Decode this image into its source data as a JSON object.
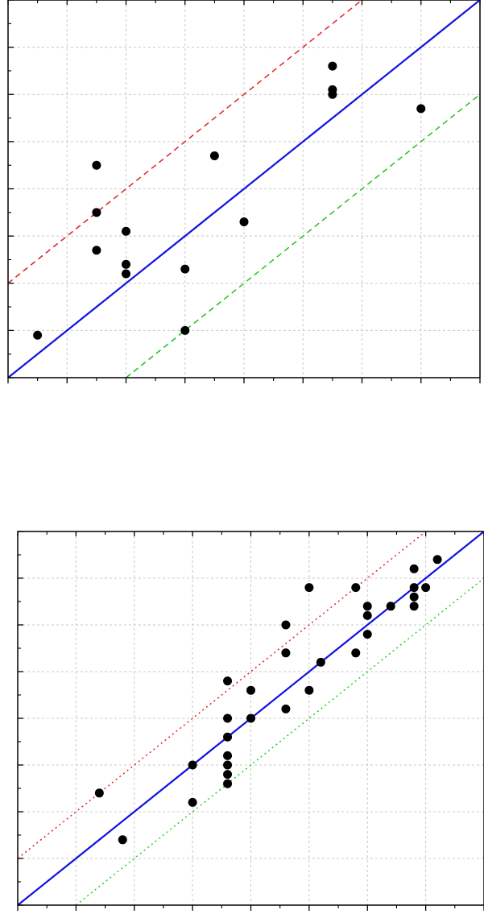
{
  "chart_data": [
    {
      "type": "scatter",
      "title": "",
      "xlabel": "",
      "ylabel": "",
      "xlim": [
        0,
        8
      ],
      "ylim": [
        0,
        8
      ],
      "x_major_ticks": [
        0,
        1,
        2,
        3,
        4,
        5,
        6,
        7,
        8
      ],
      "y_major_ticks": [
        0,
        1,
        2,
        3,
        4,
        5,
        6,
        7,
        8
      ],
      "grid": true,
      "tick_labels_visible": false,
      "series": [
        {
          "kind": "points",
          "color": "#000000",
          "x": [
            0.5,
            1.5,
            1.5,
            1.5,
            2.0,
            2.0,
            2.0,
            3.0,
            3.0,
            3.5,
            4.0,
            5.5,
            5.5,
            5.5,
            7.0
          ],
          "y": [
            0.9,
            4.5,
            3.5,
            2.7,
            3.1,
            2.4,
            2.2,
            2.3,
            1.0,
            4.7,
            3.3,
            6.6,
            6.1,
            6.0,
            5.7
          ]
        },
        {
          "kind": "line",
          "style": "solid",
          "color": "#1010e0",
          "x": [
            0,
            8
          ],
          "y": [
            0,
            8
          ]
        },
        {
          "kind": "line",
          "style": "dashed",
          "color": "#e02020",
          "x": [
            0,
            6
          ],
          "y": [
            2,
            8
          ]
        },
        {
          "kind": "line",
          "style": "dashed",
          "color": "#20c020",
          "x": [
            2,
            8
          ],
          "y": [
            0,
            6
          ]
        }
      ]
    },
    {
      "type": "scatter",
      "title": "",
      "xlabel": "",
      "ylabel": "",
      "xlim": [
        0,
        8
      ],
      "ylim": [
        0,
        8
      ],
      "x_major_ticks": [
        0,
        1,
        2,
        3,
        4,
        5,
        6,
        7,
        8
      ],
      "y_major_ticks": [
        0,
        1,
        2,
        3,
        4,
        5,
        6,
        7,
        8
      ],
      "grid": true,
      "tick_labels_visible": false,
      "series": [
        {
          "kind": "points",
          "color": "#000000",
          "x": [
            1.4,
            1.8,
            3.0,
            3.0,
            3.6,
            3.6,
            3.6,
            3.6,
            3.6,
            3.6,
            3.6,
            4.0,
            4.0,
            4.6,
            4.6,
            4.6,
            5.0,
            5.0,
            5.2,
            5.8,
            5.8,
            6.0,
            6.0,
            6.0,
            6.4,
            6.8,
            6.8,
            6.8,
            6.8,
            7.0,
            7.2
          ],
          "y": [
            2.4,
            1.4,
            3.0,
            2.2,
            4.8,
            4.0,
            3.6,
            3.2,
            3.0,
            2.8,
            2.6,
            4.6,
            4.0,
            6.0,
            5.4,
            4.2,
            6.8,
            4.6,
            5.2,
            6.8,
            5.4,
            6.4,
            6.2,
            5.8,
            6.4,
            7.2,
            6.8,
            6.6,
            6.4,
            6.8,
            7.4
          ]
        },
        {
          "kind": "line",
          "style": "solid",
          "color": "#1010e0",
          "x": [
            0,
            8
          ],
          "y": [
            0,
            8
          ]
        },
        {
          "kind": "line",
          "style": "dotted",
          "color": "#e02020",
          "x": [
            0,
            7
          ],
          "y": [
            1,
            8
          ]
        },
        {
          "kind": "line",
          "style": "dotted",
          "color": "#20d020",
          "x": [
            1,
            8
          ],
          "y": [
            0,
            7
          ]
        }
      ]
    }
  ]
}
